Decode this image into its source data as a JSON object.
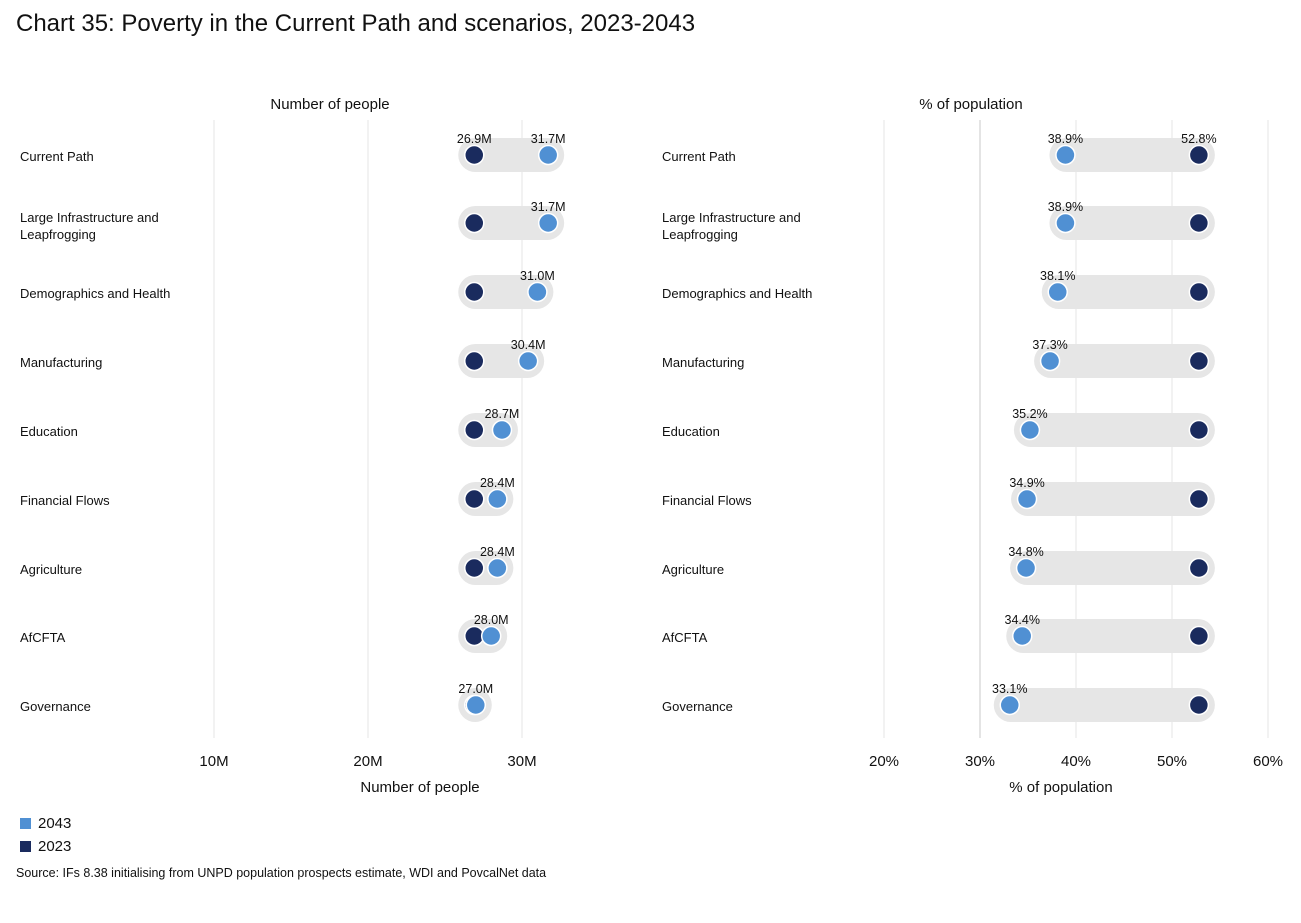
{
  "title": "Chart 35: Poverty in the Current Path and scenarios, 2023-2043",
  "source": "Source: IFs 8.38 initialising from UNPD population prospects estimate, WDI and PovcalNet data",
  "colors": {
    "series_2043": "#5090d3",
    "series_2023": "#1a2b5e",
    "pill": "#e6e6e6"
  },
  "legend": [
    {
      "label": "2043",
      "color": "#5090d3"
    },
    {
      "label": "2023",
      "color": "#1a2b5e"
    }
  ],
  "chart_data": [
    {
      "type": "dumbbell",
      "panel_title": "Number of people",
      "xlabel": "Number of people",
      "xlim": [
        10,
        34
      ],
      "x_ticks": [
        10,
        20,
        30
      ],
      "x_tick_labels": [
        "10M",
        "20M",
        "30M"
      ],
      "unit": "M",
      "categories": [
        "Current Path",
        "Large Infrastructure and Leapfrogging",
        "Demographics and Health",
        "Manufacturing",
        "Education",
        "Financial Flows",
        "Agriculture",
        "AfCFTA",
        "Governance"
      ],
      "series": [
        {
          "name": "2023",
          "values": [
            26.9,
            26.9,
            26.9,
            26.9,
            26.9,
            26.9,
            26.9,
            26.9,
            26.9
          ]
        },
        {
          "name": "2043",
          "values": [
            31.7,
            31.7,
            31.0,
            30.4,
            28.7,
            28.4,
            28.4,
            28.0,
            27.0
          ]
        }
      ],
      "data_labels": [
        [
          "26.9M",
          "31.7M"
        ],
        [
          "",
          "31.7M"
        ],
        [
          "",
          "31.0M"
        ],
        [
          "",
          "30.4M"
        ],
        [
          "",
          "28.7M"
        ],
        [
          "",
          "28.4M"
        ],
        [
          "",
          "28.4M"
        ],
        [
          "",
          "28.0M"
        ],
        [
          "",
          "27.0M"
        ]
      ]
    },
    {
      "type": "dumbbell",
      "panel_title": "% of population",
      "xlabel": "% of population",
      "xlim": [
        20,
        60
      ],
      "x_ticks": [
        20,
        30,
        40,
        50,
        60
      ],
      "x_tick_labels": [
        "20%",
        "30%",
        "40%",
        "50%",
        "60%"
      ],
      "unit": "%",
      "categories": [
        "Current Path",
        "Large Infrastructure and Leapfrogging",
        "Demographics and Health",
        "Manufacturing",
        "Education",
        "Financial Flows",
        "Agriculture",
        "AfCFTA",
        "Governance"
      ],
      "series": [
        {
          "name": "2023",
          "values": [
            52.8,
            52.8,
            52.8,
            52.8,
            52.8,
            52.8,
            52.8,
            52.8,
            52.8
          ]
        },
        {
          "name": "2043",
          "values": [
            38.9,
            38.9,
            38.1,
            37.3,
            35.2,
            34.9,
            34.8,
            34.4,
            33.1
          ]
        }
      ],
      "data_labels": [
        [
          "52.8%",
          "38.9%"
        ],
        [
          "",
          "38.9%"
        ],
        [
          "",
          "38.1%"
        ],
        [
          "",
          "37.3%"
        ],
        [
          "",
          "35.2%"
        ],
        [
          "",
          "34.9%"
        ],
        [
          "",
          "34.8%"
        ],
        [
          "",
          "34.4%"
        ],
        [
          "",
          "33.1%"
        ]
      ]
    }
  ]
}
